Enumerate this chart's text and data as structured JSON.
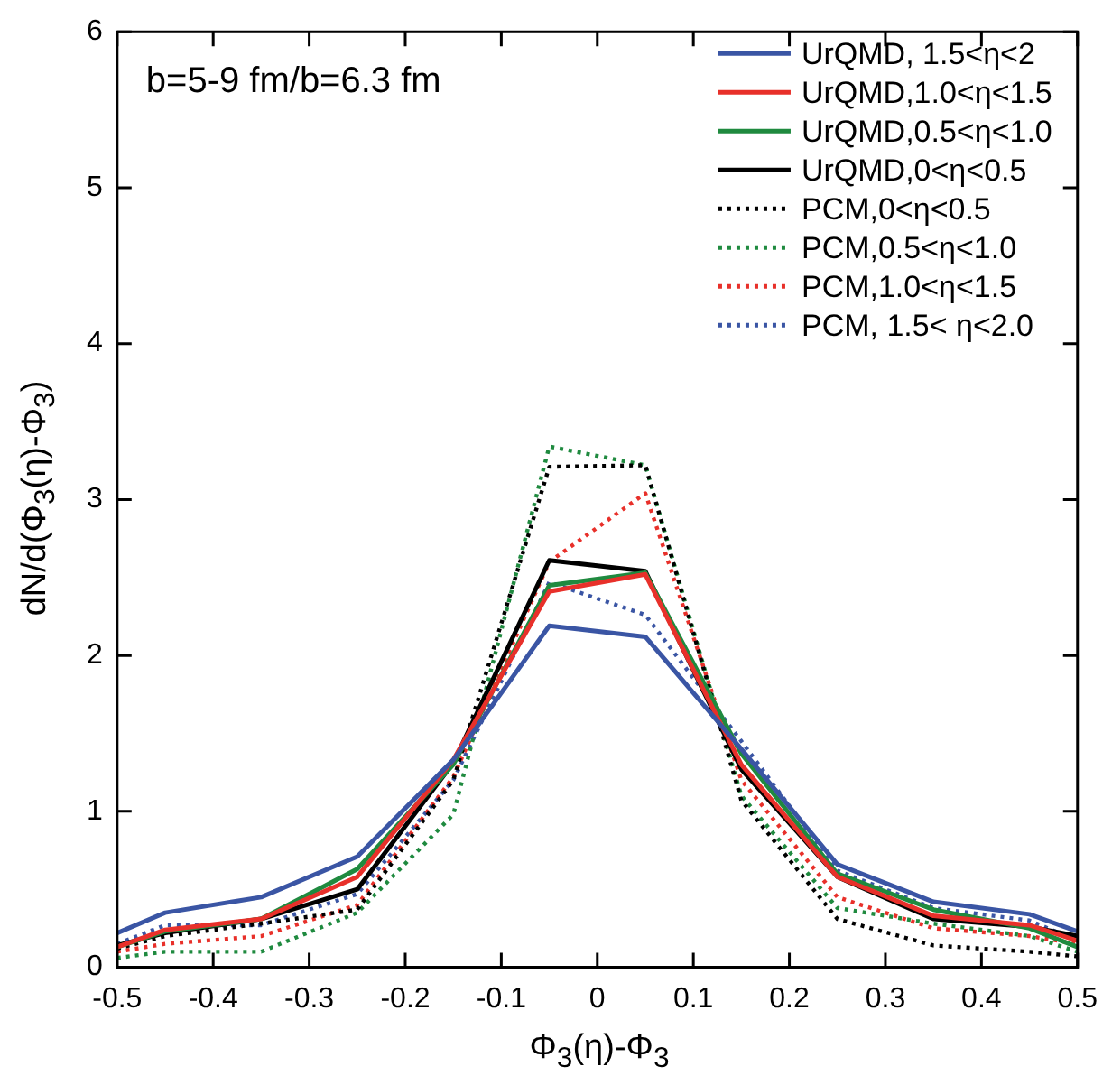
{
  "chart_data": {
    "type": "line",
    "xlabel": "Φ$_{3}$(η)-Φ$_{3}$",
    "ylabel": "dN/d(Φ$_{3}$(η)-Φ$_{3}$)",
    "annotations": [
      "b=5-9 fm/b=6.3 fm"
    ],
    "x": [
      -0.5,
      -0.45,
      -0.35,
      -0.25,
      -0.15,
      -0.05,
      0.05,
      0.15,
      0.25,
      0.35,
      0.45,
      0.5
    ],
    "xlim": [
      -0.5,
      0.5
    ],
    "xticks": [
      -0.5,
      -0.4,
      -0.3,
      -0.2,
      -0.1,
      0,
      0.1,
      0.2,
      0.3,
      0.4,
      0.5
    ],
    "ylim": [
      0,
      6
    ],
    "yticks": [
      0,
      1,
      2,
      3,
      4,
      5,
      6
    ],
    "grid": false,
    "legend": "top right",
    "marker": "none",
    "series": [
      {
        "name": "UrQMD, 1.5<η<2",
        "color": "#3a55a4",
        "line_style": "solid",
        "values": [
          0.22,
          0.35,
          0.45,
          0.71,
          1.33,
          2.19,
          2.12,
          1.4,
          0.66,
          0.42,
          0.34,
          0.23
        ]
      },
      {
        "name": "UrQMD,1.0<η<1.5",
        "color": "#e8302a",
        "line_style": "solid",
        "values": [
          0.13,
          0.24,
          0.31,
          0.58,
          1.33,
          2.41,
          2.52,
          1.3,
          0.58,
          0.33,
          0.27,
          0.17
        ]
      },
      {
        "name": "UrQMD,0.5<η<1.0",
        "color": "#1f8a3f",
        "line_style": "solid",
        "values": [
          0.13,
          0.23,
          0.31,
          0.63,
          1.3,
          2.45,
          2.53,
          1.37,
          0.6,
          0.37,
          0.25,
          0.13
        ]
      },
      {
        "name": "UrQMD,0<η<0.5",
        "color": "#000000",
        "line_style": "solid",
        "values": [
          0.14,
          0.22,
          0.31,
          0.5,
          1.31,
          2.61,
          2.54,
          1.27,
          0.58,
          0.31,
          0.26,
          0.2
        ]
      },
      {
        "name": "PCM,0<η<0.5",
        "color": "#000000",
        "line_style": "dotted",
        "values": [
          0.12,
          0.2,
          0.28,
          0.37,
          1.2,
          3.21,
          3.22,
          1.07,
          0.31,
          0.14,
          0.1,
          0.07
        ]
      },
      {
        "name": "PCM,0.5<η<1.0",
        "color": "#1f8a3f",
        "line_style": "dotted",
        "values": [
          0.06,
          0.1,
          0.1,
          0.35,
          0.98,
          3.34,
          3.22,
          1.1,
          0.38,
          0.28,
          0.2,
          0.1
        ]
      },
      {
        "name": "PCM,1.0<η<1.5",
        "color": "#e8302a",
        "line_style": "dotted",
        "values": [
          0.1,
          0.15,
          0.2,
          0.4,
          1.22,
          2.6,
          3.04,
          1.2,
          0.45,
          0.25,
          0.2,
          0.15
        ]
      },
      {
        "name": "PCM, 1.5< η<2.0",
        "color": "#3a55a4",
        "line_style": "dotted",
        "values": [
          0.15,
          0.27,
          0.27,
          0.47,
          1.2,
          2.47,
          2.26,
          1.45,
          0.62,
          0.38,
          0.3,
          0.17
        ]
      }
    ]
  }
}
